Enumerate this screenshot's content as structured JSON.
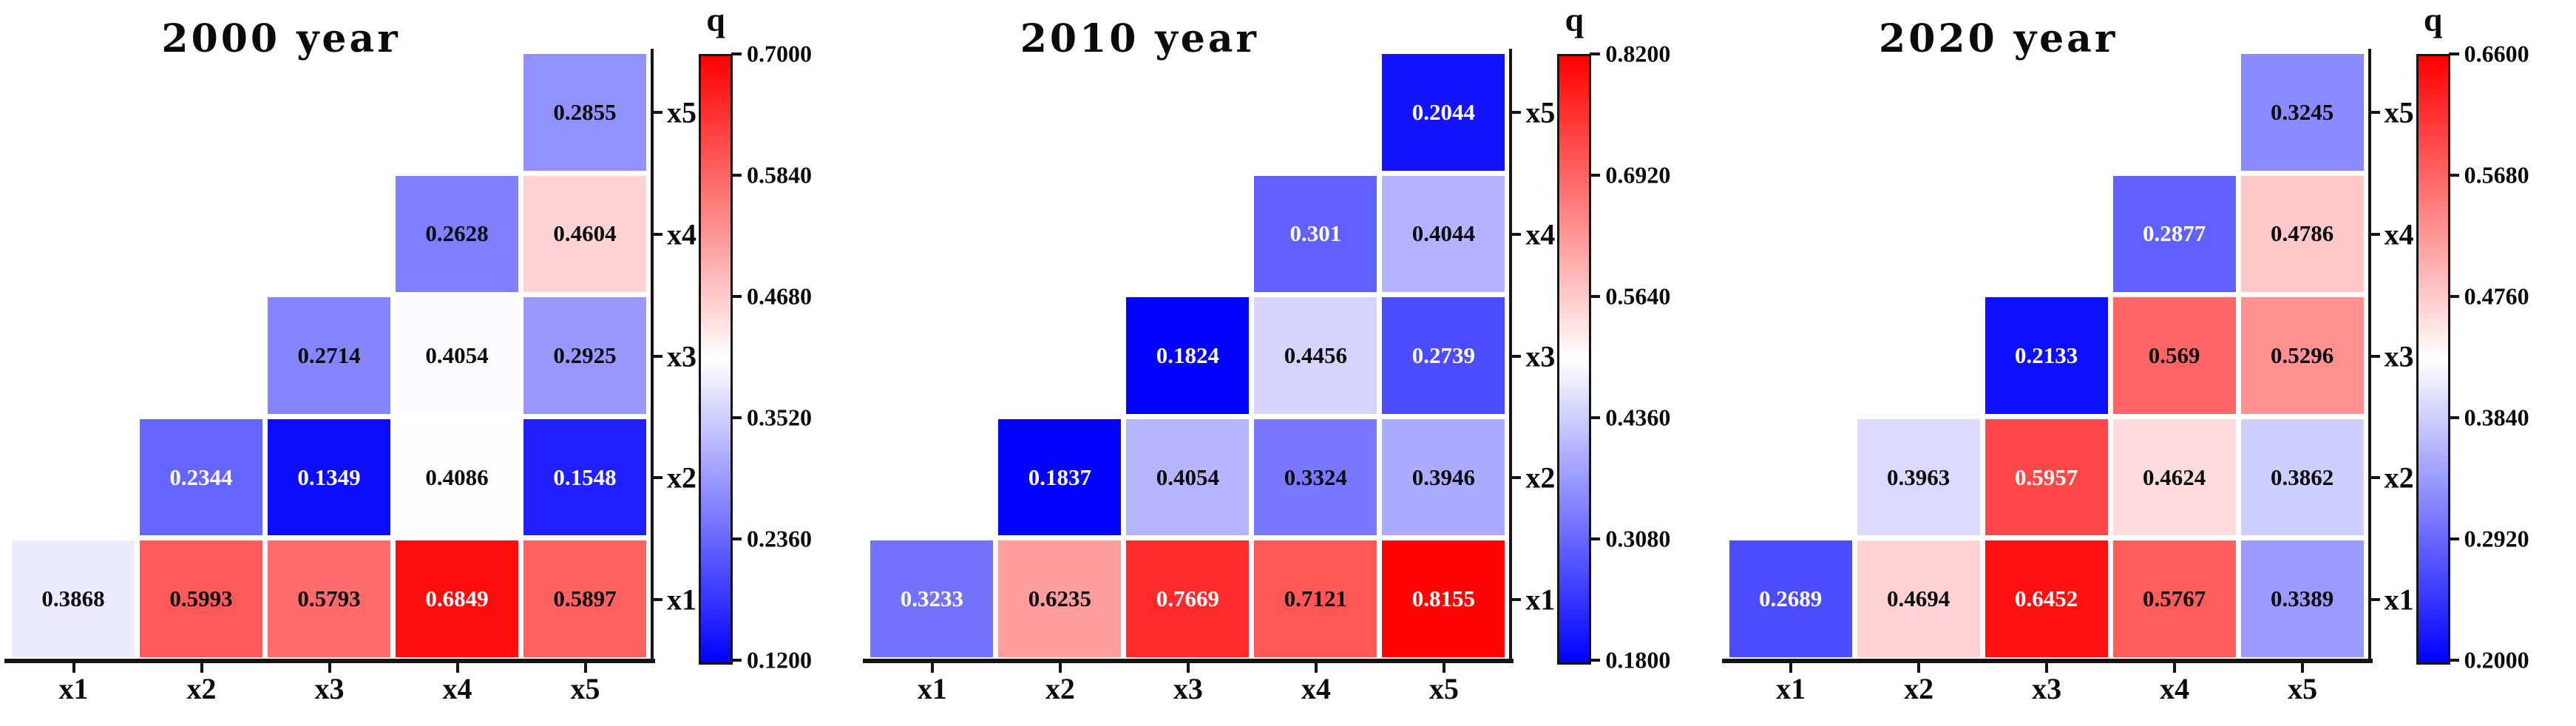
{
  "figure": {
    "background": "#ffffff",
    "colormap": "blue-white-red",
    "color_low": "#0000ff",
    "color_mid": "#ffffff",
    "color_high": "#ff0000"
  },
  "chart_data": [
    {
      "type": "heatmap",
      "title": "2000 year",
      "colorbar_title": "q",
      "vmin": 0.12,
      "vmax": 0.7,
      "colorbar_ticks": [
        "0.7000",
        "0.5840",
        "0.4680",
        "0.3520",
        "0.2360",
        "0.1200"
      ],
      "x_labels": [
        "x1",
        "x2",
        "x3",
        "x4",
        "x5"
      ],
      "y_labels_bottom_to_top": [
        "x1",
        "x2",
        "x3",
        "x4",
        "x5"
      ],
      "rows_bottom_to_top": [
        {
          "label": "x1",
          "values": [
            0.3868,
            0.5993,
            0.5793,
            0.6849,
            0.5897
          ]
        },
        {
          "label": "x2",
          "values": [
            null,
            0.2344,
            0.1349,
            0.4086,
            0.1548
          ]
        },
        {
          "label": "x3",
          "values": [
            null,
            null,
            0.2714,
            0.4054,
            0.2925
          ]
        },
        {
          "label": "x4",
          "values": [
            null,
            null,
            null,
            0.2628,
            0.4604
          ]
        },
        {
          "label": "x5",
          "values": [
            null,
            null,
            null,
            null,
            0.2855
          ]
        }
      ]
    },
    {
      "type": "heatmap",
      "title": "2010 year",
      "colorbar_title": "q",
      "vmin": 0.18,
      "vmax": 0.82,
      "colorbar_ticks": [
        "0.8200",
        "0.6920",
        "0.5640",
        "0.4360",
        "0.3080",
        "0.1800"
      ],
      "x_labels": [
        "x1",
        "x2",
        "x3",
        "x4",
        "x5"
      ],
      "y_labels_bottom_to_top": [
        "x1",
        "x2",
        "x3",
        "x4",
        "x5"
      ],
      "rows_bottom_to_top": [
        {
          "label": "x1",
          "values": [
            0.3233,
            0.6235,
            0.7669,
            0.7121,
            0.8155
          ]
        },
        {
          "label": "x2",
          "values": [
            null,
            0.1837,
            0.4054,
            0.3324,
            0.3946
          ]
        },
        {
          "label": "x3",
          "values": [
            null,
            null,
            0.1824,
            0.4456,
            0.2739
          ]
        },
        {
          "label": "x4",
          "values": [
            null,
            null,
            null,
            0.301,
            0.4044
          ]
        },
        {
          "label": "x5",
          "values": [
            null,
            null,
            null,
            null,
            0.2044
          ]
        }
      ]
    },
    {
      "type": "heatmap",
      "title": "2020 year",
      "colorbar_title": "q",
      "vmin": 0.2,
      "vmax": 0.66,
      "colorbar_ticks": [
        "0.6600",
        "0.5680",
        "0.4760",
        "0.3840",
        "0.2920",
        "0.2000"
      ],
      "x_labels": [
        "x1",
        "x2",
        "x3",
        "x4",
        "x5"
      ],
      "y_labels_bottom_to_top": [
        "x1",
        "x2",
        "x3",
        "x4",
        "x5"
      ],
      "rows_bottom_to_top": [
        {
          "label": "x1",
          "values": [
            0.2689,
            0.4694,
            0.6452,
            0.5767,
            0.3389
          ]
        },
        {
          "label": "x2",
          "values": [
            null,
            0.3963,
            0.5957,
            0.4624,
            0.3862
          ]
        },
        {
          "label": "x3",
          "values": [
            null,
            null,
            0.2133,
            0.569,
            0.5296
          ]
        },
        {
          "label": "x4",
          "values": [
            null,
            null,
            null,
            0.2877,
            0.4786
          ]
        },
        {
          "label": "x5",
          "values": [
            null,
            null,
            null,
            null,
            0.3245
          ]
        }
      ]
    }
  ]
}
